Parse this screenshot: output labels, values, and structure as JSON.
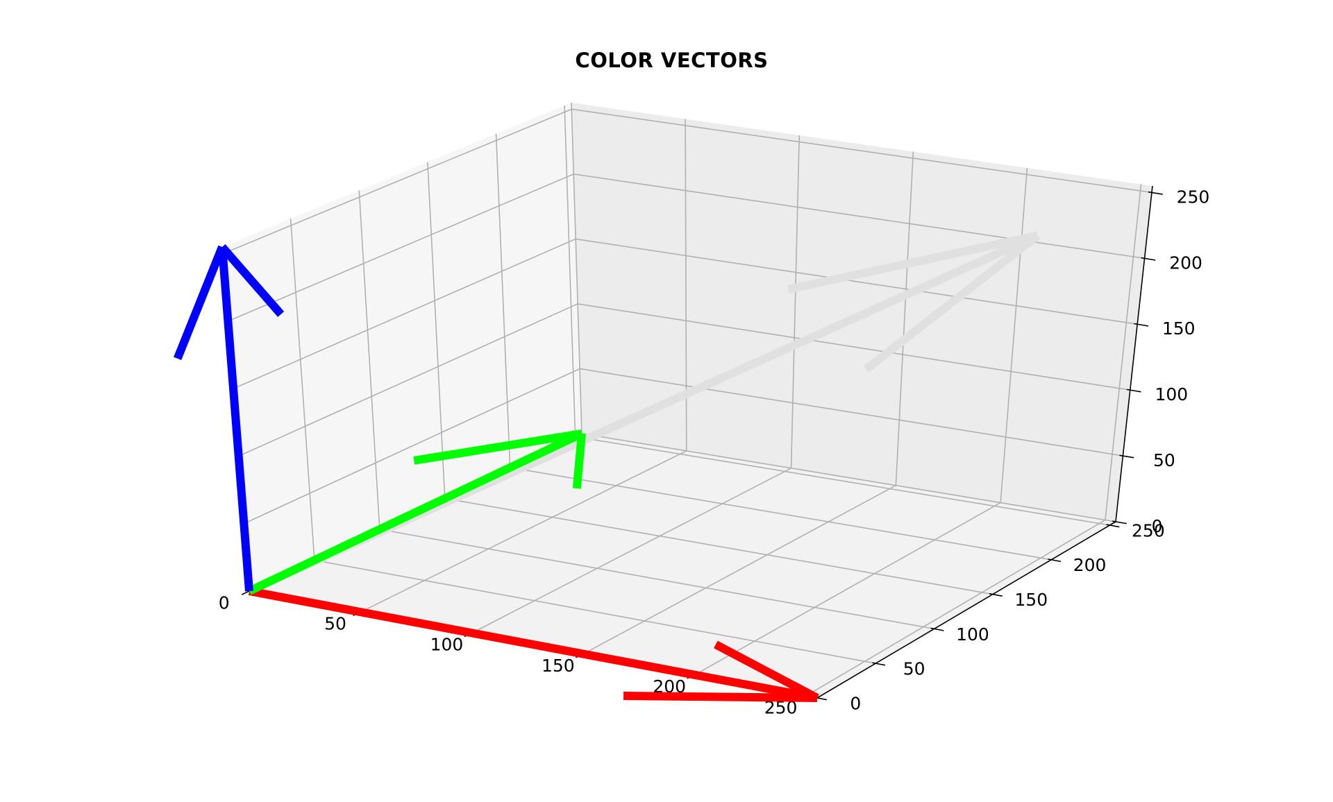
{
  "chart_data": {
    "type": "3d-quiver",
    "title": "COLOR VECTORS",
    "xlabel": "",
    "ylabel": "",
    "zlabel": "",
    "xlim": [
      0,
      255
    ],
    "ylim": [
      0,
      255
    ],
    "zlim": [
      0,
      255
    ],
    "grid": true,
    "x_ticks": [
      "0",
      "50",
      "100",
      "150",
      "200",
      "250"
    ],
    "y_ticks": [
      "0",
      "50",
      "100",
      "150",
      "200",
      "250"
    ],
    "z_ticks": [
      "0",
      "50",
      "100",
      "150",
      "200",
      "250"
    ],
    "vectors": [
      {
        "origin": [
          0,
          0,
          0
        ],
        "components": [
          255,
          0,
          0
        ],
        "color": "#ff0000"
      },
      {
        "origin": [
          0,
          0,
          0
        ],
        "components": [
          0,
          255,
          0
        ],
        "color": "#00ff00"
      },
      {
        "origin": [
          0,
          0,
          0
        ],
        "components": [
          0,
          0,
          255
        ],
        "color": "#0000ff"
      },
      {
        "origin": [
          0,
          0,
          0
        ],
        "components": [
          224,
          224,
          224
        ],
        "color": "#e0e0e0"
      }
    ]
  }
}
